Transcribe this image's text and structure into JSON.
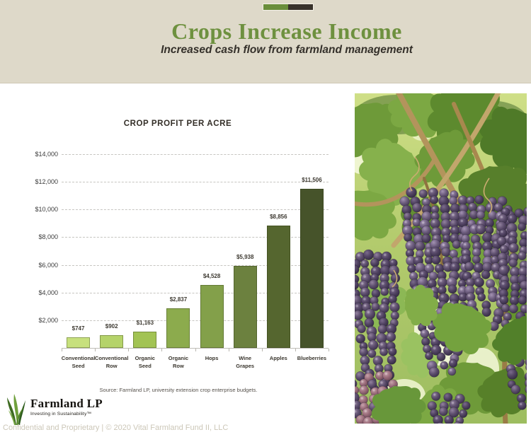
{
  "slide": {
    "title": "Crops Increase Income",
    "subtitle": "Increased cash flow from farmland management"
  },
  "chart_data": {
    "type": "bar",
    "title": "CROP PROFIT PER ACRE",
    "categories": [
      "Conventional Seed",
      "Conventional Row",
      "Organic Seed",
      "Organic Row",
      "Hops",
      "Wine Grapes",
      "Apples",
      "Blueberries"
    ],
    "values": [
      747,
      902,
      1163,
      2837,
      4528,
      5938,
      8856,
      11506
    ],
    "value_labels": [
      "$747",
      "$902",
      "$1,163",
      "$2,837",
      "$4,528",
      "$5,938",
      "$8,856",
      "$11,506"
    ],
    "bar_colors": [
      "#c7e07d",
      "#b5d36a",
      "#a2c353",
      "#8cab4d",
      "#83a04a",
      "#6c813f",
      "#55662f",
      "#46532a"
    ],
    "xlabel": "",
    "ylabel": "",
    "ylim": [
      0,
      14000
    ],
    "yticks": [
      2000,
      4000,
      6000,
      8000,
      10000,
      12000,
      14000
    ],
    "ytick_labels": [
      "$2,000",
      "$4,000",
      "$6,000",
      "$8,000",
      "$10,000",
      "$12,000",
      "$14,000"
    ],
    "grid": "horizontal-dashed",
    "legend": null
  },
  "chart": {
    "source": "Source: Farmland LP, university extension crop enterprise budgets."
  },
  "logo": {
    "name": "Farmland LP",
    "tagline": "Investing in Sustainability™"
  },
  "footer": {
    "text": "Confidential and Proprietary | © 2020 Vital Farmland Fund II, LLC"
  },
  "photo": {
    "description": "Clusters of ripe purple wine grapes hanging from leafy green grapevines in sunlight",
    "palette": {
      "canopy_light": "#cfdf87",
      "canopy_mid": "#b3cb6d",
      "canopy_dark": "#9dbd60",
      "grape_purple": "#5f506f",
      "grape_dark": "#332a42",
      "grape_pink": "#9d6f7d",
      "cane_brown": "#b3945c"
    }
  },
  "theme": {
    "header_bg": "#ded9c9",
    "title_green": "#6e913f",
    "accent_green": "#6a8e3b",
    "accent_dark": "#38322a"
  }
}
